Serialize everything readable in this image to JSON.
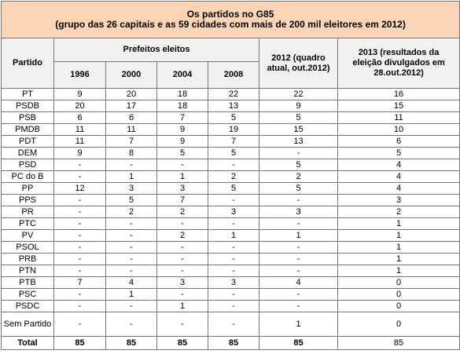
{
  "header": {
    "title": "Os partidos no G85",
    "subtitle": "(grupo das 26 capitais e as 59 cidades com mais de 200 mil eleitores em 2012)"
  },
  "table": {
    "columns": {
      "party": "Partido",
      "group": "Prefeitos eleitos",
      "years": [
        "1996",
        "2000",
        "2004",
        "2008"
      ],
      "col2012": "2012 (quadro atual, out.2012)",
      "col2013": "2013 (resultados da eleição divulgados em 28.out.2012)"
    },
    "rows": [
      [
        "PT",
        "9",
        "20",
        "18",
        "22",
        "22",
        "16"
      ],
      [
        "PSDB",
        "20",
        "17",
        "18",
        "13",
        "9",
        "15"
      ],
      [
        "PSB",
        "6",
        "6",
        "7",
        "5",
        "5",
        "11"
      ],
      [
        "PMDB",
        "11",
        "11",
        "9",
        "19",
        "15",
        "10"
      ],
      [
        "PDT",
        "11",
        "7",
        "9",
        "7",
        "13",
        "6"
      ],
      [
        "DEM",
        "9",
        "8",
        "5",
        "5",
        "-",
        "5"
      ],
      [
        "PSD",
        "-",
        "-",
        "-",
        "-",
        "5",
        "4"
      ],
      [
        "PC do B",
        "-",
        "1",
        "1",
        "2",
        "2",
        "4"
      ],
      [
        "PP",
        "12",
        "3",
        "3",
        "5",
        "5",
        "4"
      ],
      [
        "PPS",
        "-",
        "5",
        "7",
        "-",
        "-",
        "3"
      ],
      [
        "PR",
        "-",
        "2",
        "2",
        "3",
        "3",
        "2"
      ],
      [
        "PTC",
        "-",
        "-",
        "-",
        "-",
        "-",
        "1"
      ],
      [
        "PV",
        "-",
        "-",
        "2",
        "1",
        "1",
        "1"
      ],
      [
        "PSOL",
        "-",
        "-",
        "-",
        "-",
        "-",
        "1"
      ],
      [
        "PRB",
        "-",
        "-",
        "-",
        "-",
        "-",
        "1"
      ],
      [
        "PTN",
        "-",
        "-",
        "-",
        "-",
        "-",
        "1"
      ],
      [
        "PTB",
        "7",
        "4",
        "3",
        "3",
        "4",
        "0"
      ],
      [
        "PSC",
        "-",
        "1",
        "-",
        "-",
        "-",
        "0"
      ],
      [
        "PSDC",
        "-",
        "-",
        "1",
        "-",
        "-",
        "0"
      ],
      [
        "Sem Partido",
        "-",
        "-",
        "-",
        "-",
        "1",
        "0"
      ],
      [
        "Total",
        "85",
        "85",
        "85",
        "85",
        "85",
        "85"
      ]
    ]
  }
}
